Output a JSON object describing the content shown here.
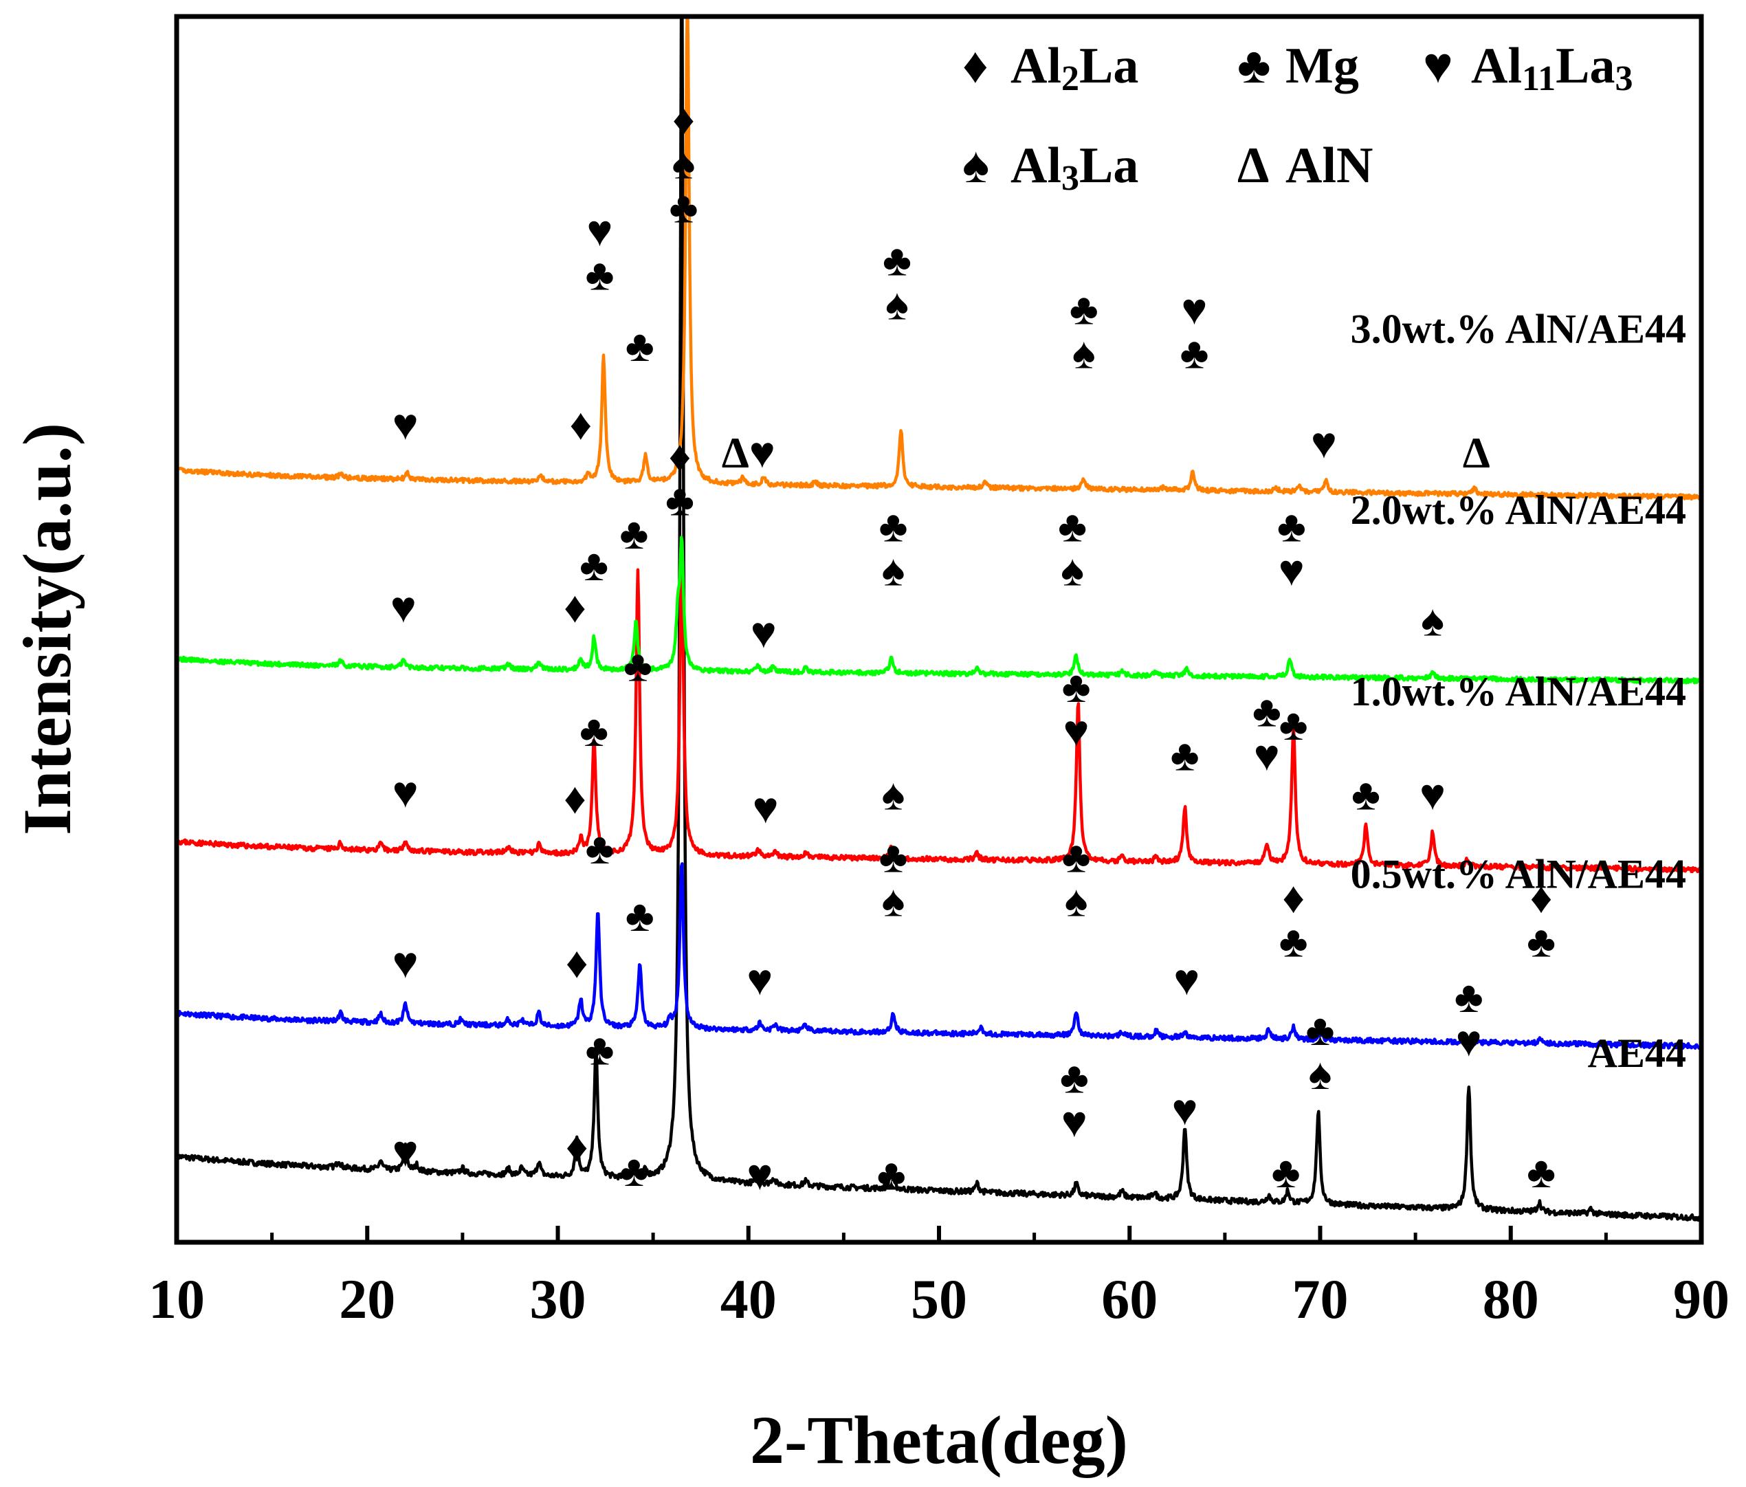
{
  "chart_data": {
    "type": "line",
    "title": "",
    "xlabel": "2-Theta(deg)",
    "ylabel": "Intensity(a.u.)",
    "xlim": [
      10,
      90
    ],
    "ylim": [
      0,
      100
    ],
    "xticks": [
      "10",
      "20",
      "30",
      "40",
      "50",
      "60",
      "70",
      "80",
      "90"
    ],
    "grid": false,
    "legend": {
      "placement": "top-right",
      "entries": [
        {
          "id": "al2la",
          "symbol": "♦",
          "label": "Al",
          "sub": "2",
          "label2": "La",
          "sub2": ""
        },
        {
          "id": "mg",
          "symbol": "♣",
          "label": "Mg",
          "sub": "",
          "label2": "",
          "sub2": ""
        },
        {
          "id": "al11la3",
          "symbol": "♥",
          "label": "Al",
          "sub": "11",
          "label2": "La",
          "sub2": "3"
        },
        {
          "id": "al3la",
          "symbol": "♠",
          "label": "Al",
          "sub": "3",
          "label2": "La",
          "sub2": ""
        },
        {
          "id": "aln",
          "symbol": "Δ",
          "label": "AlN",
          "sub": "",
          "label2": "",
          "sub2": ""
        }
      ]
    },
    "series": [
      {
        "name": "AE44",
        "color": "#000000",
        "base_start": 6.4,
        "base_end": 2.0,
        "noise": 0.22,
        "seed": 7,
        "peaks": [
          [
            18.5,
            0.6
          ],
          [
            20.7,
            0.7
          ],
          [
            22.0,
            2.0
          ],
          [
            22.6,
            0.5
          ],
          [
            25.0,
            0.4
          ],
          [
            27.4,
            0.5
          ],
          [
            28.1,
            0.6
          ],
          [
            29.0,
            1.2
          ],
          [
            31.0,
            3.0
          ],
          [
            32.0,
            10.5
          ],
          [
            34.0,
            1.2
          ],
          [
            34.6,
            0.6
          ],
          [
            36.5,
            100
          ],
          [
            40.5,
            0.6
          ],
          [
            41.3,
            0.5
          ],
          [
            43.0,
            0.4
          ],
          [
            47.5,
            1.4
          ],
          [
            52.0,
            0.7
          ],
          [
            57.2,
            1.0
          ],
          [
            59.6,
            0.5
          ],
          [
            61.3,
            0.5
          ],
          [
            62.9,
            6.0
          ],
          [
            67.3,
            0.6
          ],
          [
            68.3,
            1.0
          ],
          [
            69.9,
            7.6
          ],
          [
            77.8,
            10.2
          ],
          [
            81.5,
            0.8
          ],
          [
            84.2,
            0.4
          ]
        ]
      },
      {
        "name": "0.5wt.% AlN/AE44",
        "color": "#0000ff",
        "base_start": 18.1,
        "base_end": 16.0,
        "noise": 0.2,
        "seed": 11,
        "peaks": [
          [
            18.6,
            0.7
          ],
          [
            20.7,
            0.7
          ],
          [
            22.0,
            1.6
          ],
          [
            24.9,
            0.4
          ],
          [
            27.4,
            0.5
          ],
          [
            28.1,
            0.5
          ],
          [
            29.0,
            1.1
          ],
          [
            31.2,
            2.2
          ],
          [
            32.1,
            9.6
          ],
          [
            34.3,
            5.3
          ],
          [
            35.9,
            0.6
          ],
          [
            36.5,
            13.8
          ],
          [
            40.6,
            0.6
          ],
          [
            41.4,
            0.5
          ],
          [
            43.0,
            0.5
          ],
          [
            47.6,
            1.6
          ],
          [
            52.2,
            0.6
          ],
          [
            57.2,
            2.0
          ],
          [
            59.6,
            0.4
          ],
          [
            61.4,
            0.5
          ],
          [
            62.9,
            0.4
          ],
          [
            67.3,
            0.8
          ],
          [
            68.6,
            1.1
          ],
          [
            70.0,
            0.6
          ],
          [
            81.6,
            0.5
          ]
        ]
      },
      {
        "name": "1.0wt.% AlN/AE44",
        "color": "#ff0000",
        "base_start": 32.1,
        "base_end": 30.4,
        "noise": 0.2,
        "seed": 23,
        "peaks": [
          [
            18.6,
            0.5
          ],
          [
            20.7,
            0.5
          ],
          [
            22.0,
            0.9
          ],
          [
            27.4,
            0.5
          ],
          [
            29.0,
            0.7
          ],
          [
            31.2,
            1.2
          ],
          [
            31.9,
            9.6
          ],
          [
            34.2,
            23.0
          ],
          [
            36.5,
            25.0
          ],
          [
            40.5,
            0.6
          ],
          [
            41.4,
            0.4
          ],
          [
            43.0,
            0.4
          ],
          [
            47.5,
            1.0
          ],
          [
            52.0,
            0.5
          ],
          [
            57.3,
            13.1
          ],
          [
            59.6,
            0.4
          ],
          [
            61.4,
            0.5
          ],
          [
            62.9,
            4.5
          ],
          [
            67.2,
            1.7
          ],
          [
            68.6,
            11.4
          ],
          [
            72.4,
            3.3
          ],
          [
            75.9,
            2.8
          ],
          [
            77.7,
            0.5
          ]
        ]
      },
      {
        "name": "2.0wt.% AlN/AE44",
        "color": "#00ff00",
        "base_start": 47.0,
        "base_end": 45.8,
        "noise": 0.18,
        "seed": 31,
        "peaks": [
          [
            18.6,
            0.4
          ],
          [
            21.9,
            0.6
          ],
          [
            27.4,
            0.4
          ],
          [
            29.0,
            0.6
          ],
          [
            31.2,
            0.9
          ],
          [
            31.9,
            2.7
          ],
          [
            34.1,
            4.0
          ],
          [
            36.3,
            4.0
          ],
          [
            36.5,
            10.0
          ],
          [
            40.5,
            0.5
          ],
          [
            41.3,
            0.4
          ],
          [
            43.0,
            0.3
          ],
          [
            47.5,
            1.3
          ],
          [
            52.0,
            0.4
          ],
          [
            57.2,
            1.6
          ],
          [
            59.6,
            0.3
          ],
          [
            61.4,
            0.3
          ],
          [
            63.0,
            0.6
          ],
          [
            68.4,
            1.5
          ],
          [
            75.9,
            0.5
          ]
        ]
      },
      {
        "name": "3.0wt.% AlN/AE44",
        "color": "#ff8000",
        "base_start": 62.4,
        "base_end": 60.8,
        "noise": 0.18,
        "seed": 41,
        "peaks": [
          [
            18.6,
            0.3
          ],
          [
            22.1,
            0.5
          ],
          [
            29.1,
            0.6
          ],
          [
            31.6,
            0.7
          ],
          [
            32.4,
            10.4
          ],
          [
            34.6,
            2.3
          ],
          [
            36.8,
            40.0
          ],
          [
            39.7,
            0.5
          ],
          [
            40.8,
            0.6
          ],
          [
            43.5,
            0.3
          ],
          [
            48.0,
            4.7
          ],
          [
            52.4,
            0.5
          ],
          [
            57.6,
            0.9
          ],
          [
            61.8,
            0.3
          ],
          [
            63.3,
            1.5
          ],
          [
            67.7,
            0.3
          ],
          [
            68.9,
            0.6
          ],
          [
            70.3,
            1.0
          ],
          [
            78.1,
            0.5
          ]
        ]
      }
    ],
    "sample_labels": [
      {
        "text": "3.0wt.% AlN/AE44",
        "y": 73.4
      },
      {
        "text": "2.0wt.% AlN/AE44",
        "y": 58.6
      },
      {
        "text": "1.0wt.% AlN/AE44",
        "y": 43.8
      },
      {
        "text": "0.5wt.% AlN/AE44",
        "y": 28.9
      },
      {
        "text": "AE44",
        "y": 14.3
      }
    ],
    "annotations": [
      {
        "x": 22.0,
        "y": 65.5,
        "symbols": [
          "♥"
        ]
      },
      {
        "x": 31.2,
        "y": 65.5,
        "symbols": [
          "♦"
        ]
      },
      {
        "x": 32.2,
        "y": 77.7,
        "symbols": [
          "♥",
          "♣"
        ]
      },
      {
        "x": 34.3,
        "y": 71.9,
        "symbols": [
          "♣"
        ]
      },
      {
        "x": 36.6,
        "y": 83.2,
        "symbols": [
          "♦",
          "♠",
          "♣"
        ]
      },
      {
        "x": 40.0,
        "y": 63.2,
        "symbols": [
          "Δ♥"
        ]
      },
      {
        "x": 47.8,
        "y": 75.3,
        "symbols": [
          "♣",
          "♠"
        ]
      },
      {
        "x": 57.6,
        "y": 71.3,
        "symbols": [
          "♣",
          "♠"
        ]
      },
      {
        "x": 63.4,
        "y": 71.3,
        "symbols": [
          "♥",
          "♣"
        ]
      },
      {
        "x": 70.2,
        "y": 64.0,
        "symbols": [
          "♥"
        ]
      },
      {
        "x": 78.2,
        "y": 63.2,
        "symbols": [
          "Δ"
        ]
      },
      {
        "x": 21.9,
        "y": 50.6,
        "symbols": [
          "♥"
        ]
      },
      {
        "x": 30.9,
        "y": 50.6,
        "symbols": [
          "♦"
        ]
      },
      {
        "x": 31.9,
        "y": 54.0,
        "symbols": [
          "♣"
        ]
      },
      {
        "x": 34.0,
        "y": 56.6,
        "symbols": [
          "♣"
        ]
      },
      {
        "x": 36.4,
        "y": 59.3,
        "symbols": [
          "♦",
          "♣"
        ]
      },
      {
        "x": 40.8,
        "y": 48.5,
        "symbols": [
          "♥"
        ]
      },
      {
        "x": 47.6,
        "y": 53.6,
        "symbols": [
          "♣",
          "♠"
        ]
      },
      {
        "x": 57.0,
        "y": 53.6,
        "symbols": [
          "♣",
          "♠"
        ]
      },
      {
        "x": 68.5,
        "y": 53.6,
        "symbols": [
          "♣",
          "♥"
        ]
      },
      {
        "x": 75.9,
        "y": 49.5,
        "symbols": [
          "♠"
        ]
      },
      {
        "x": 22.0,
        "y": 35.5,
        "symbols": [
          "♥"
        ]
      },
      {
        "x": 30.9,
        "y": 35.0,
        "symbols": [
          "♦"
        ]
      },
      {
        "x": 31.9,
        "y": 40.5,
        "symbols": [
          "♣"
        ]
      },
      {
        "x": 34.2,
        "y": 45.8,
        "symbols": [
          "♣"
        ]
      },
      {
        "x": 40.9,
        "y": 34.2,
        "symbols": [
          "♥"
        ]
      },
      {
        "x": 47.6,
        "y": 35.3,
        "symbols": [
          "♠"
        ]
      },
      {
        "x": 57.2,
        "y": 40.5,
        "symbols": [
          "♣",
          "♥"
        ]
      },
      {
        "x": 62.9,
        "y": 38.5,
        "symbols": [
          "♣"
        ]
      },
      {
        "x": 67.2,
        "y": 38.5,
        "symbols": [
          "♣",
          "♥"
        ]
      },
      {
        "x": 68.6,
        "y": 41.0,
        "symbols": [
          "♣"
        ]
      },
      {
        "x": 72.4,
        "y": 35.3,
        "symbols": [
          "♣"
        ]
      },
      {
        "x": 75.9,
        "y": 35.3,
        "symbols": [
          "♥"
        ]
      },
      {
        "x": 22.0,
        "y": 21.6,
        "symbols": [
          "♥"
        ]
      },
      {
        "x": 31.0,
        "y": 21.6,
        "symbols": [
          "♦"
        ]
      },
      {
        "x": 32.2,
        "y": 30.9,
        "symbols": [
          "♣"
        ]
      },
      {
        "x": 34.3,
        "y": 25.4,
        "symbols": [
          "♣"
        ]
      },
      {
        "x": 40.6,
        "y": 20.2,
        "symbols": [
          "♥"
        ]
      },
      {
        "x": 47.6,
        "y": 26.6,
        "symbols": [
          "♣",
          "♠"
        ]
      },
      {
        "x": 57.2,
        "y": 26.6,
        "symbols": [
          "♣",
          "♠"
        ]
      },
      {
        "x": 63.0,
        "y": 20.2,
        "symbols": [
          "♥"
        ]
      },
      {
        "x": 68.6,
        "y": 23.3,
        "symbols": [
          "♦",
          "♣"
        ]
      },
      {
        "x": 81.6,
        "y": 23.3,
        "symbols": [
          "♦",
          "♣"
        ]
      },
      {
        "x": 22.0,
        "y": 6.2,
        "symbols": [
          "♥"
        ]
      },
      {
        "x": 31.0,
        "y": 6.6,
        "symbols": [
          "♦"
        ]
      },
      {
        "x": 32.2,
        "y": 14.5,
        "symbols": [
          "♣"
        ]
      },
      {
        "x": 34.0,
        "y": 4.6,
        "symbols": [
          "♣"
        ]
      },
      {
        "x": 40.6,
        "y": 4.3,
        "symbols": [
          "♥"
        ]
      },
      {
        "x": 47.5,
        "y": 4.3,
        "symbols": [
          "♣"
        ]
      },
      {
        "x": 57.1,
        "y": 8.6,
        "symbols": [
          "♣",
          "♥"
        ]
      },
      {
        "x": 62.9,
        "y": 9.6,
        "symbols": [
          "♥"
        ]
      },
      {
        "x": 68.2,
        "y": 4.5,
        "symbols": [
          "♣"
        ]
      },
      {
        "x": 70.0,
        "y": 12.5,
        "symbols": [
          "♣",
          "♠"
        ]
      },
      {
        "x": 77.8,
        "y": 15.2,
        "symbols": [
          "♣",
          "♥"
        ]
      },
      {
        "x": 81.6,
        "y": 4.5,
        "symbols": [
          "♣"
        ]
      }
    ]
  }
}
